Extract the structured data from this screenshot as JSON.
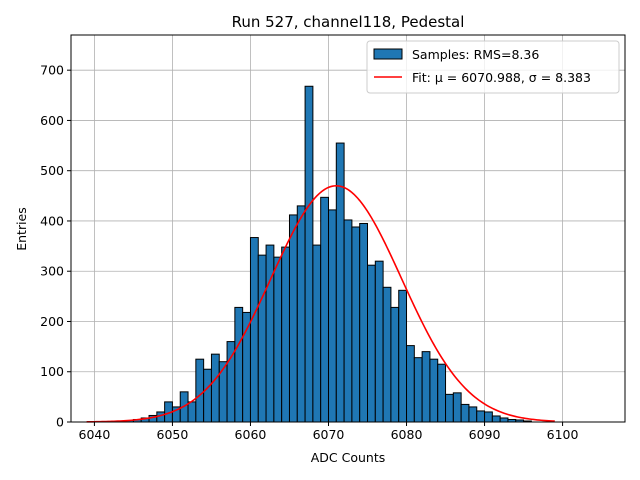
{
  "chart_data": {
    "type": "bar",
    "title": "Run 527, channel118, Pedestal",
    "xlabel": "ADC Counts",
    "ylabel": "Entries",
    "xlim": [
      6037,
      6108
    ],
    "ylim": [
      0,
      770
    ],
    "xticks": [
      6040,
      6050,
      6060,
      6070,
      6080,
      6090,
      6100
    ],
    "yticks": [
      0,
      100,
      200,
      300,
      400,
      500,
      600,
      700
    ],
    "grid": true,
    "legend_position": "top-right",
    "histogram": {
      "name": "Samples: RMS=8.36",
      "color": "#1f77b4",
      "bin_width": 1,
      "bin_edges_start": 6042,
      "counts": [
        1,
        2,
        3,
        5,
        8,
        13,
        20,
        40,
        30,
        60,
        40,
        125,
        105,
        135,
        120,
        160,
        228,
        218,
        367,
        332,
        352,
        328,
        348,
        412,
        430,
        668,
        352,
        447,
        422,
        555,
        402,
        388,
        395,
        312,
        320,
        268,
        228,
        262,
        152,
        128,
        140,
        125,
        115,
        55,
        58,
        35,
        30,
        22,
        20,
        12,
        8,
        5,
        4,
        2
      ]
    },
    "fit": {
      "name": "Fit: μ = 6070.988, σ = 8.383",
      "color": "#ff0000",
      "mu": 6070.988,
      "sigma": 8.383,
      "amplitude": 470,
      "x_range": [
        6039,
        6099
      ]
    }
  }
}
